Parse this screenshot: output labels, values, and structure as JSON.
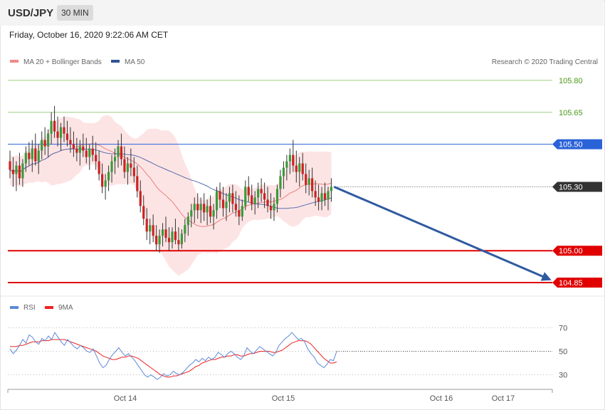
{
  "header": {
    "symbol": "USD/JPY",
    "timeframe": "30 MIN"
  },
  "timestamp": "Friday, October 16, 2020 9:22:06 AM CET",
  "legend": {
    "ma20": "MA 20 + Bollinger Bands",
    "ma50": "MA 50",
    "credit": "Research © 2020 Trading Central"
  },
  "rsi_legend": {
    "rsi": "RSI",
    "ma9": "9MA"
  },
  "colors": {
    "bull": "#3a9a3a",
    "bear": "#cc2222",
    "band": "#fde3e3",
    "ma20": "#e88080",
    "ma50": "#5b6fae",
    "green_level": "#9ccc78",
    "blue_level": "#2a62d8",
    "red_level": "#e00000",
    "last": "#333333",
    "arrow": "#2f5aa0",
    "rsi": "#5d88d8",
    "rsi_ma": "#ee2222"
  },
  "chart_data": [
    {
      "type": "candlestick",
      "title": "USD/JPY 30 MIN",
      "ylim": [
        104.79,
        105.87
      ],
      "x_ticks": [
        "Oct 14",
        "Oct 15",
        "Oct 16",
        "Oct 17"
      ],
      "levels": [
        {
          "label": "105.80",
          "value": 105.8,
          "style": "green"
        },
        {
          "label": "105.65",
          "value": 105.65,
          "style": "green"
        },
        {
          "label": "105.50",
          "value": 105.5,
          "style": "blue"
        },
        {
          "label": "105.30",
          "value": 105.3,
          "style": "last"
        },
        {
          "label": "105.00",
          "value": 105.0,
          "style": "red"
        },
        {
          "label": "104.85",
          "value": 104.85,
          "style": "red"
        }
      ],
      "projection": {
        "from": 105.3,
        "to": 104.85
      },
      "candles_key": [
        "open",
        "high",
        "low",
        "close"
      ],
      "candles": [
        [
          105.42,
          105.47,
          105.34,
          105.38
        ],
        [
          105.38,
          105.44,
          105.3,
          105.36
        ],
        [
          105.36,
          105.42,
          105.28,
          105.4
        ],
        [
          105.4,
          105.46,
          105.31,
          105.34
        ],
        [
          105.34,
          105.43,
          105.3,
          105.41
        ],
        [
          105.41,
          105.49,
          105.37,
          105.46
        ],
        [
          105.46,
          105.51,
          105.4,
          105.43
        ],
        [
          105.43,
          105.52,
          105.37,
          105.48
        ],
        [
          105.48,
          105.55,
          105.4,
          105.42
        ],
        [
          105.42,
          105.5,
          105.36,
          105.47
        ],
        [
          105.47,
          105.56,
          105.43,
          105.52
        ],
        [
          105.52,
          105.58,
          105.45,
          105.49
        ],
        [
          105.49,
          105.57,
          105.44,
          105.55
        ],
        [
          105.55,
          105.65,
          105.5,
          105.61
        ],
        [
          105.61,
          105.68,
          105.53,
          105.56
        ],
        [
          105.56,
          105.63,
          105.49,
          105.53
        ],
        [
          105.53,
          105.6,
          105.47,
          105.58
        ],
        [
          105.58,
          105.63,
          105.51,
          105.55
        ],
        [
          105.55,
          105.61,
          105.49,
          105.52
        ],
        [
          105.52,
          105.58,
          105.46,
          105.5
        ],
        [
          105.5,
          105.56,
          105.44,
          105.48
        ],
        [
          105.48,
          105.53,
          105.42,
          105.46
        ],
        [
          105.46,
          105.52,
          105.4,
          105.49
        ],
        [
          105.49,
          105.55,
          105.44,
          105.47
        ],
        [
          105.47,
          105.53,
          105.41,
          105.44
        ],
        [
          105.44,
          105.5,
          105.38,
          105.48
        ],
        [
          105.48,
          105.54,
          105.42,
          105.45
        ],
        [
          105.45,
          105.51,
          105.38,
          105.42
        ],
        [
          105.42,
          105.47,
          105.33,
          105.36
        ],
        [
          105.36,
          105.41,
          105.27,
          105.3
        ],
        [
          105.3,
          105.36,
          105.24,
          105.33
        ],
        [
          105.33,
          105.4,
          105.28,
          105.37
        ],
        [
          105.37,
          105.45,
          105.32,
          105.42
        ],
        [
          105.42,
          105.48,
          105.36,
          105.44
        ],
        [
          105.44,
          105.52,
          105.39,
          105.49
        ],
        [
          105.49,
          105.55,
          105.4,
          105.43
        ],
        [
          105.43,
          105.49,
          105.34,
          105.37
        ],
        [
          105.37,
          105.44,
          105.31,
          105.41
        ],
        [
          105.41,
          105.48,
          105.35,
          105.39
        ],
        [
          105.39,
          105.44,
          105.32,
          105.35
        ],
        [
          105.35,
          105.4,
          105.25,
          105.28
        ],
        [
          105.28,
          105.33,
          105.18,
          105.21
        ],
        [
          105.21,
          105.26,
          105.12,
          105.15
        ],
        [
          105.15,
          105.2,
          105.05,
          105.09
        ],
        [
          105.09,
          105.15,
          105.03,
          105.12
        ],
        [
          105.12,
          105.17,
          105.04,
          105.07
        ],
        [
          105.07,
          105.12,
          105.0,
          105.03
        ],
        [
          105.03,
          105.1,
          104.99,
          105.07
        ],
        [
          105.07,
          105.13,
          105.02,
          105.1
        ],
        [
          105.1,
          105.16,
          105.04,
          105.06
        ],
        [
          105.06,
          105.11,
          105.0,
          105.04
        ],
        [
          105.04,
          105.11,
          105.01,
          105.09
        ],
        [
          105.09,
          105.15,
          105.03,
          105.05
        ],
        [
          105.05,
          105.11,
          105.0,
          105.03
        ],
        [
          105.03,
          105.1,
          105.01,
          105.08
        ],
        [
          105.08,
          105.15,
          105.04,
          105.12
        ],
        [
          105.12,
          105.18,
          105.07,
          105.16
        ],
        [
          105.16,
          105.22,
          105.11,
          105.19
        ],
        [
          105.19,
          105.25,
          105.13,
          105.22
        ],
        [
          105.22,
          105.27,
          105.15,
          105.19
        ],
        [
          105.19,
          105.25,
          105.13,
          105.22
        ],
        [
          105.22,
          105.27,
          105.14,
          105.18
        ],
        [
          105.18,
          105.24,
          105.12,
          105.21
        ],
        [
          105.21,
          105.26,
          105.13,
          105.16
        ],
        [
          105.16,
          105.22,
          105.1,
          105.19
        ],
        [
          105.19,
          105.3,
          105.15,
          105.28
        ],
        [
          105.28,
          105.32,
          105.2,
          105.24
        ],
        [
          105.24,
          105.3,
          105.16,
          105.2
        ],
        [
          105.2,
          105.27,
          105.14,
          105.23
        ],
        [
          105.23,
          105.3,
          105.18,
          105.27
        ],
        [
          105.27,
          105.31,
          105.18,
          105.22
        ],
        [
          105.22,
          105.28,
          105.16,
          105.19
        ],
        [
          105.19,
          105.26,
          105.12,
          105.16
        ],
        [
          105.16,
          105.24,
          105.14,
          105.21
        ],
        [
          105.21,
          105.33,
          105.19,
          105.3
        ],
        [
          105.3,
          105.35,
          105.23,
          105.26
        ],
        [
          105.26,
          105.31,
          105.19,
          105.22
        ],
        [
          105.22,
          105.28,
          105.17,
          105.25
        ],
        [
          105.25,
          105.32,
          105.2,
          105.29
        ],
        [
          105.29,
          105.34,
          105.23,
          105.27
        ],
        [
          105.27,
          105.32,
          105.2,
          105.24
        ],
        [
          105.24,
          105.3,
          105.18,
          105.21
        ],
        [
          105.21,
          105.27,
          105.15,
          105.19
        ],
        [
          105.19,
          105.25,
          105.14,
          105.22
        ],
        [
          105.22,
          105.31,
          105.18,
          105.29
        ],
        [
          105.29,
          105.38,
          105.25,
          105.35
        ],
        [
          105.35,
          105.42,
          105.29,
          105.39
        ],
        [
          105.39,
          105.45,
          105.33,
          105.42
        ],
        [
          105.42,
          105.48,
          105.36,
          105.45
        ],
        [
          105.45,
          105.52,
          105.37,
          105.4
        ],
        [
          105.4,
          105.47,
          105.32,
          105.37
        ],
        [
          105.37,
          105.44,
          105.3,
          105.41
        ],
        [
          105.41,
          105.46,
          105.33,
          105.36
        ],
        [
          105.36,
          105.41,
          105.27,
          105.31
        ],
        [
          105.31,
          105.38,
          105.26,
          105.34
        ],
        [
          105.34,
          105.39,
          105.25,
          105.28
        ],
        [
          105.28,
          105.33,
          105.21,
          105.25
        ],
        [
          105.25,
          105.31,
          105.19,
          105.23
        ],
        [
          105.23,
          105.3,
          105.19,
          105.27
        ],
        [
          105.27,
          105.32,
          105.21,
          105.24
        ],
        [
          105.24,
          105.3,
          105.19,
          105.28
        ],
        [
          105.28,
          105.34,
          105.23,
          105.3
        ]
      ]
    },
    {
      "type": "line",
      "title": "RSI",
      "ylim": [
        20,
        80
      ],
      "y_ticks": [
        "70",
        "50",
        "30"
      ],
      "series": [
        {
          "name": "RSI",
          "values": [
            52,
            48,
            51,
            55,
            60,
            57,
            64,
            62,
            58,
            56,
            61,
            59,
            63,
            60,
            66,
            62,
            58,
            55,
            60,
            57,
            54,
            52,
            55,
            53,
            50,
            49,
            52,
            46,
            40,
            36,
            38,
            43,
            47,
            50,
            53,
            49,
            46,
            48,
            45,
            42,
            38,
            34,
            30,
            28,
            30,
            28,
            26,
            28,
            31,
            29,
            30,
            33,
            31,
            30,
            32,
            35,
            38,
            40,
            43,
            41,
            44,
            42,
            45,
            43,
            45,
            49,
            47,
            45,
            48,
            50,
            48,
            45,
            43,
            46,
            53,
            50,
            48,
            51,
            54,
            52,
            50,
            48,
            46,
            49,
            55,
            58,
            61,
            63,
            66,
            63,
            60,
            61,
            58,
            52,
            48,
            45,
            40,
            38,
            36,
            39,
            43,
            42,
            50
          ]
        },
        {
          "name": "9MA",
          "values": [
            54,
            54,
            54,
            55,
            55,
            56,
            57,
            58,
            58,
            58,
            59,
            59,
            59,
            60,
            60,
            60,
            60,
            60,
            59,
            58,
            57,
            56,
            55,
            54,
            53,
            52,
            51,
            50,
            48,
            46,
            45,
            44,
            43,
            43,
            44,
            45,
            45,
            46,
            46,
            45,
            44,
            42,
            40,
            38,
            36,
            34,
            32,
            30,
            29,
            28,
            28,
            29,
            29,
            30,
            31,
            32,
            33,
            35,
            37,
            38,
            40,
            41,
            42,
            43,
            43,
            44,
            45,
            45,
            46,
            46,
            47,
            47,
            46,
            46,
            47,
            48,
            48,
            49,
            50,
            50,
            50,
            50,
            49,
            49,
            50,
            51,
            53,
            55,
            57,
            58,
            59,
            59,
            59,
            58,
            56,
            53,
            50,
            47,
            44,
            42,
            40,
            40,
            41
          ]
        }
      ]
    }
  ]
}
